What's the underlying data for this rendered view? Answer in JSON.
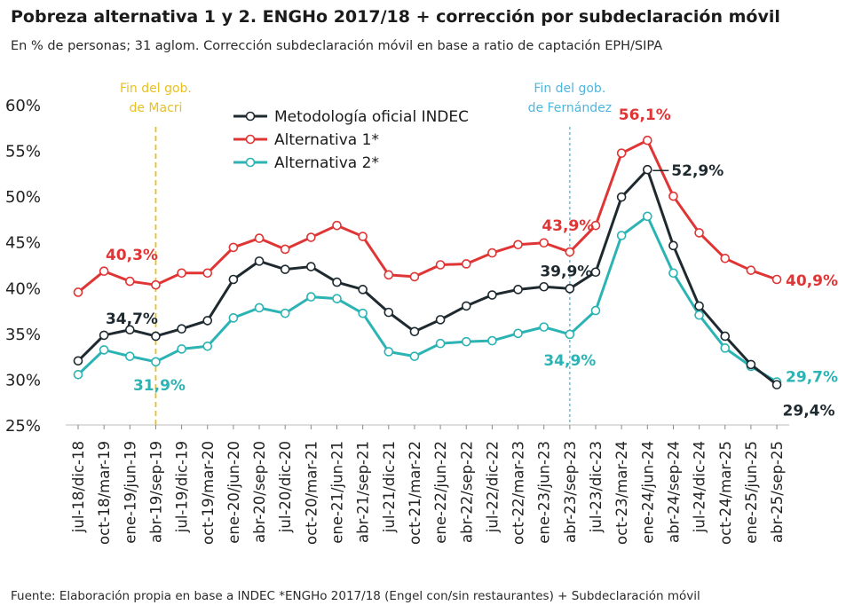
{
  "header": {
    "title": "Pobreza alternativa  1 y 2. ENGHo 2017/18 + corrección por subdeclaración móvil",
    "subtitle": "En % de personas; 31 aglom. Corrección subdeclaración móvil en base a ratio de captación EPH/SIPA"
  },
  "footer": {
    "source": "Fuente: Elaboración propia en base a INDEC *ENGHo 2017/18 (Engel con/sin restaurantes) + Subdeclaración móvil"
  },
  "colors": {
    "oficial": "#1f2a30",
    "alt1": "#e03535",
    "alt2": "#2cb3b3",
    "macri_line": "#e8c020",
    "fernandez_line": "#4fb6dd"
  },
  "chart_data": {
    "type": "line",
    "title": "Pobreza alternativa  1 y 2. ENGHo 2017/18 + corrección por subdeclaración móvil",
    "subtitle": "En % de personas; 31 aglom. Corrección subdeclaración móvil en base a ratio de captación EPH/SIPA",
    "xlabel": "",
    "ylabel": "",
    "ylim": [
      25,
      60
    ],
    "yticks": [
      25,
      30,
      35,
      40,
      45,
      50,
      55,
      60
    ],
    "ytick_labels": [
      "25%",
      "30%",
      "35%",
      "40%",
      "45%",
      "50%",
      "55%",
      "60%"
    ],
    "grid": false,
    "legend_position": "top-center",
    "categories": [
      "jul-18/dic-18",
      "oct-18/mar-19",
      "ene-19/jun-19",
      "abr-19/sep-19",
      "jul-19/dic-19",
      "oct-19/mar-20",
      "ene-20/jun-20",
      "abr-20/sep-20",
      "jul-20/dic-20",
      "oct-20/mar-21",
      "ene-21/jun-21",
      "abr-21/sep-21",
      "jul-21/dic-21",
      "oct-21/mar-22",
      "ene-22/jun-22",
      "abr-22/sep-22",
      "jul-22/dic-22",
      "oct-22/mar-23",
      "ene-23/jun-23",
      "abr-23/sep-23",
      "jul-23/dic-23",
      "oct-23/mar-24",
      "ene-24/jun-24",
      "abr-24/sep-24",
      "jul-24/dic-24",
      "oct-24/mar-25",
      "ene-25/jun-25",
      "abr-25/sep-25"
    ],
    "series": [
      {
        "name": "Metodología oficial INDEC",
        "color": "#1f2a30",
        "values": [
          32.0,
          34.8,
          35.4,
          34.7,
          35.5,
          36.4,
          40.9,
          42.9,
          42.0,
          42.3,
          40.6,
          39.8,
          37.3,
          35.2,
          36.5,
          38.0,
          39.2,
          39.8,
          40.1,
          39.9,
          41.7,
          49.9,
          52.9,
          44.6,
          38.0,
          34.7,
          31.6,
          29.4
        ]
      },
      {
        "name": "Alternativa 1*",
        "color": "#e03535",
        "values": [
          39.5,
          41.8,
          40.7,
          40.3,
          41.6,
          41.6,
          44.4,
          45.4,
          44.2,
          45.5,
          46.8,
          45.6,
          41.4,
          41.2,
          42.5,
          42.6,
          43.8,
          44.7,
          44.9,
          43.9,
          46.8,
          54.7,
          56.1,
          50.0,
          46.0,
          43.2,
          41.9,
          40.9
        ]
      },
      {
        "name": "Alternativa 2*",
        "color": "#2cb3b3",
        "values": [
          30.5,
          33.2,
          32.5,
          31.9,
          33.3,
          33.6,
          36.7,
          37.8,
          37.2,
          39.0,
          38.8,
          37.2,
          33.0,
          32.5,
          33.9,
          34.1,
          34.2,
          35.0,
          35.7,
          34.9,
          37.5,
          45.7,
          47.8,
          41.6,
          37.0,
          33.4,
          31.4,
          29.7
        ]
      }
    ],
    "data_labels": [
      {
        "series": 0,
        "index": 3,
        "text": "34,7%"
      },
      {
        "series": 1,
        "index": 3,
        "text": "40,3%"
      },
      {
        "series": 2,
        "index": 3,
        "text": "31,9%"
      },
      {
        "series": 0,
        "index": 19,
        "text": "39,9%"
      },
      {
        "series": 1,
        "index": 19,
        "text": "43,9%"
      },
      {
        "series": 2,
        "index": 19,
        "text": "34,9%"
      },
      {
        "series": 0,
        "index": 22,
        "text": "52,9%"
      },
      {
        "series": 1,
        "index": 22,
        "text": "56,1%"
      },
      {
        "series": 1,
        "index": 27,
        "text": "40,9%"
      },
      {
        "series": 2,
        "index": 27,
        "text": "29,7%"
      },
      {
        "series": 0,
        "index": 27,
        "text": "29,4%"
      }
    ],
    "annotations": [
      {
        "text": "Fin del gob. de Macri",
        "lines": [
          "Fin del gob.",
          "de Macri"
        ],
        "at_category": "abr-19/sep-19",
        "color": "#e8c020"
      },
      {
        "text": "Fin del gob. de Fernández",
        "lines": [
          "Fin del gob.",
          "de Fernández"
        ],
        "at_category": "abr-23/sep-23",
        "color": "#4fb6dd"
      }
    ]
  }
}
